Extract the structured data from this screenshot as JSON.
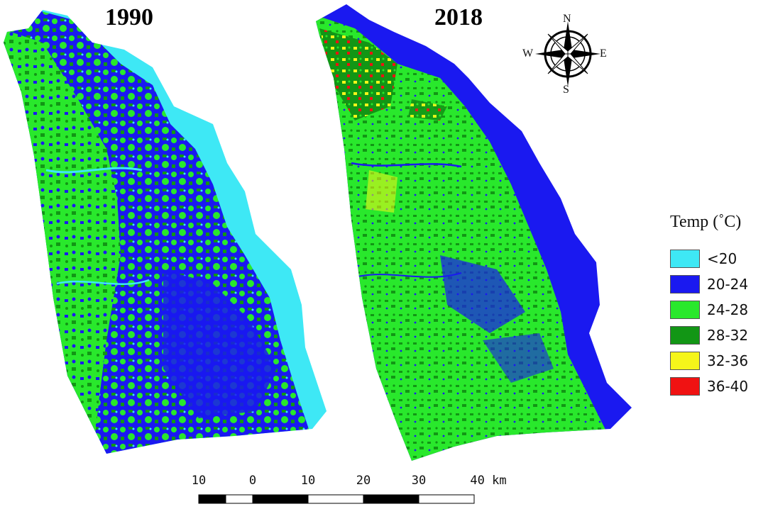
{
  "panels": [
    {
      "title": "1990"
    },
    {
      "title": "2018"
    }
  ],
  "legend": {
    "title": "Temp (˚C)",
    "items": [
      {
        "label": "<20",
        "color": "#3ee8f5"
      },
      {
        "label": "20-24",
        "color": "#1a19f0"
      },
      {
        "label": "24-28",
        "color": "#29e82c"
      },
      {
        "label": "28-32",
        "color": "#129615"
      },
      {
        "label": "32-36",
        "color": "#f5f51a"
      },
      {
        "label": "36-40",
        "color": "#f01212"
      }
    ]
  },
  "compass": {
    "north": "N",
    "south": "S",
    "east": "E",
    "west": "W"
  },
  "scale_bar": {
    "ticks": [
      "10",
      "0",
      "10",
      "20",
      "30",
      "40 km"
    ]
  }
}
